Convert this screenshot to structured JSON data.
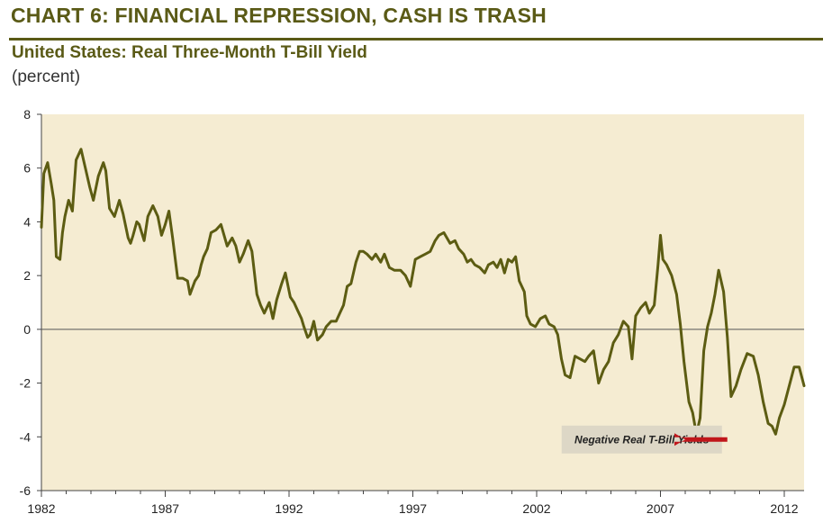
{
  "header": {
    "title": "CHART 6: FINANCIAL REPRESSION, CASH IS TRASH",
    "subtitle": "United States: Real Three-Month T-Bill Yield",
    "units": "(percent)"
  },
  "colors": {
    "brand": "#5a5a16",
    "line": "#5c5c12",
    "plot_background": "#f5ecd2",
    "annotation_box": "#ddd7c6",
    "arrow": "#c0161b",
    "zero_line": "#555555"
  },
  "chart_data": {
    "type": "line",
    "title": "United States: Real Three-Month T-Bill Yield",
    "ylabel": "(percent)",
    "xlabel": "",
    "xlim": [
      1982.0,
      2012.8
    ],
    "ylim": [
      -6,
      8
    ],
    "x_ticks": [
      1982,
      1987,
      1992,
      1997,
      2002,
      2007,
      2012
    ],
    "x_tick_labels": [
      "1982",
      "1987",
      "1992",
      "1997",
      "2002",
      "2007",
      "2012"
    ],
    "y_ticks": [
      8,
      6,
      4,
      2,
      0,
      -2,
      -4,
      -6
    ],
    "y_tick_labels": [
      "8",
      "6",
      "4",
      "2",
      "0",
      "-2",
      "-4",
      "-6"
    ],
    "grid": false,
    "reference_line": 0,
    "annotations": [
      {
        "text": "Negative Real T-Bill Yields",
        "x": 2003.3,
        "y": -4.1,
        "arrow_to": [
          2008.0,
          -4.1
        ]
      }
    ],
    "series": [
      {
        "x": [
          1982.0,
          1982.1,
          1982.25,
          1982.4,
          1982.5,
          1982.6,
          1982.75,
          1982.85,
          1982.95,
          1983.1,
          1983.25,
          1983.4,
          1983.6,
          1983.8,
          1983.95,
          1984.1,
          1984.3,
          1984.5,
          1984.6,
          1984.75,
          1984.95,
          1985.15,
          1985.3,
          1985.5,
          1985.6,
          1985.7,
          1985.85,
          1985.95,
          1986.15,
          1986.3,
          1986.5,
          1986.7,
          1986.85,
          1987.0,
          1987.15,
          1987.3,
          1987.5,
          1987.7,
          1987.9,
          1988.0,
          1988.2,
          1988.35,
          1988.45,
          1988.55,
          1988.7,
          1988.85,
          1989.05,
          1989.25,
          1989.5,
          1989.7,
          1989.85,
          1990.0,
          1990.15,
          1990.35,
          1990.5,
          1990.7,
          1990.85,
          1991.0,
          1991.2,
          1991.35,
          1991.5,
          1991.7,
          1991.85,
          1992.05,
          1992.2,
          1992.35,
          1992.5,
          1992.6,
          1992.75,
          1992.85,
          1993.0,
          1993.15,
          1993.35,
          1993.5,
          1993.7,
          1993.9,
          1994.05,
          1994.2,
          1994.35,
          1994.5,
          1994.7,
          1994.85,
          1995.0,
          1995.15,
          1995.35,
          1995.5,
          1995.7,
          1995.85,
          1996.05,
          1996.25,
          1996.5,
          1996.7,
          1996.9,
          1997.1,
          1997.3,
          1997.5,
          1997.7,
          1997.9,
          1998.05,
          1998.25,
          1998.5,
          1998.7,
          1998.85,
          1999.05,
          1999.2,
          1999.35,
          1999.5,
          1999.7,
          1999.9,
          2000.05,
          2000.25,
          2000.4,
          2000.55,
          2000.7,
          2000.85,
          2001.0,
          2001.15,
          2001.3,
          2001.5,
          2001.6,
          2001.75,
          2001.95,
          2002.15,
          2002.35,
          2002.5,
          2002.7,
          2002.85,
          2003.0,
          2003.15,
          2003.35,
          2003.55,
          2003.75,
          2003.95,
          2004.1,
          2004.3,
          2004.5,
          2004.7,
          2004.9,
          2005.1,
          2005.3,
          2005.5,
          2005.7,
          2005.85,
          2006.0,
          2006.2,
          2006.4,
          2006.55,
          2006.75,
          2006.9,
          2007.0,
          2007.1,
          2007.25,
          2007.45,
          2007.65,
          2007.8,
          2007.95,
          2008.15,
          2008.3,
          2008.45,
          2008.6,
          2008.75,
          2008.9,
          2009.05,
          2009.2,
          2009.35,
          2009.55,
          2009.7,
          2009.85,
          2010.05,
          2010.25,
          2010.5,
          2010.75,
          2010.95,
          2011.15,
          2011.35,
          2011.5,
          2011.65,
          2011.8,
          2012.0,
          2012.2,
          2012.4,
          2012.6,
          2012.8
        ],
        "values": [
          3.8,
          5.8,
          6.2,
          5.4,
          4.8,
          2.7,
          2.6,
          3.6,
          4.2,
          4.8,
          4.4,
          6.3,
          6.7,
          5.9,
          5.3,
          4.8,
          5.7,
          6.2,
          5.9,
          4.5,
          4.2,
          4.8,
          4.3,
          3.4,
          3.2,
          3.5,
          4.0,
          3.9,
          3.3,
          4.2,
          4.6,
          4.2,
          3.5,
          3.9,
          4.4,
          3.4,
          1.9,
          1.9,
          1.8,
          1.3,
          1.8,
          2.0,
          2.4,
          2.7,
          3.0,
          3.6,
          3.7,
          3.9,
          3.1,
          3.4,
          3.1,
          2.5,
          2.8,
          3.3,
          2.9,
          1.3,
          0.9,
          0.6,
          1.0,
          0.4,
          1.1,
          1.7,
          2.1,
          1.2,
          1.0,
          0.7,
          0.4,
          0.1,
          -0.3,
          -0.2,
          0.3,
          -0.4,
          -0.2,
          0.1,
          0.3,
          0.3,
          0.6,
          0.9,
          1.6,
          1.7,
          2.5,
          2.9,
          2.9,
          2.8,
          2.6,
          2.8,
          2.5,
          2.8,
          2.3,
          2.2,
          2.2,
          2.0,
          1.6,
          2.6,
          2.7,
          2.8,
          2.9,
          3.3,
          3.5,
          3.6,
          3.2,
          3.3,
          3.0,
          2.8,
          2.5,
          2.6,
          2.4,
          2.3,
          2.1,
          2.4,
          2.5,
          2.3,
          2.6,
          2.1,
          2.6,
          2.5,
          2.7,
          1.8,
          1.4,
          0.5,
          0.2,
          0.1,
          0.4,
          0.5,
          0.2,
          0.1,
          -0.2,
          -1.1,
          -1.7,
          -1.8,
          -1.0,
          -1.1,
          -1.2,
          -1.0,
          -0.8,
          -2.0,
          -1.5,
          -1.2,
          -0.5,
          -0.2,
          0.3,
          0.1,
          -1.1,
          0.5,
          0.8,
          1.0,
          0.6,
          0.9,
          2.4,
          3.5,
          2.6,
          2.4,
          2.0,
          1.3,
          0.2,
          -1.2,
          -2.7,
          -3.1,
          -3.9,
          -3.3,
          -0.8,
          0.1,
          0.6,
          1.3,
          2.2,
          1.4,
          -0.3,
          -2.5,
          -2.1,
          -1.5,
          -0.9,
          -1.0,
          -1.7,
          -2.7,
          -3.5,
          -3.6,
          -3.9,
          -3.3,
          -2.8,
          -2.1,
          -1.4,
          -1.4,
          -2.1
        ]
      }
    ]
  }
}
